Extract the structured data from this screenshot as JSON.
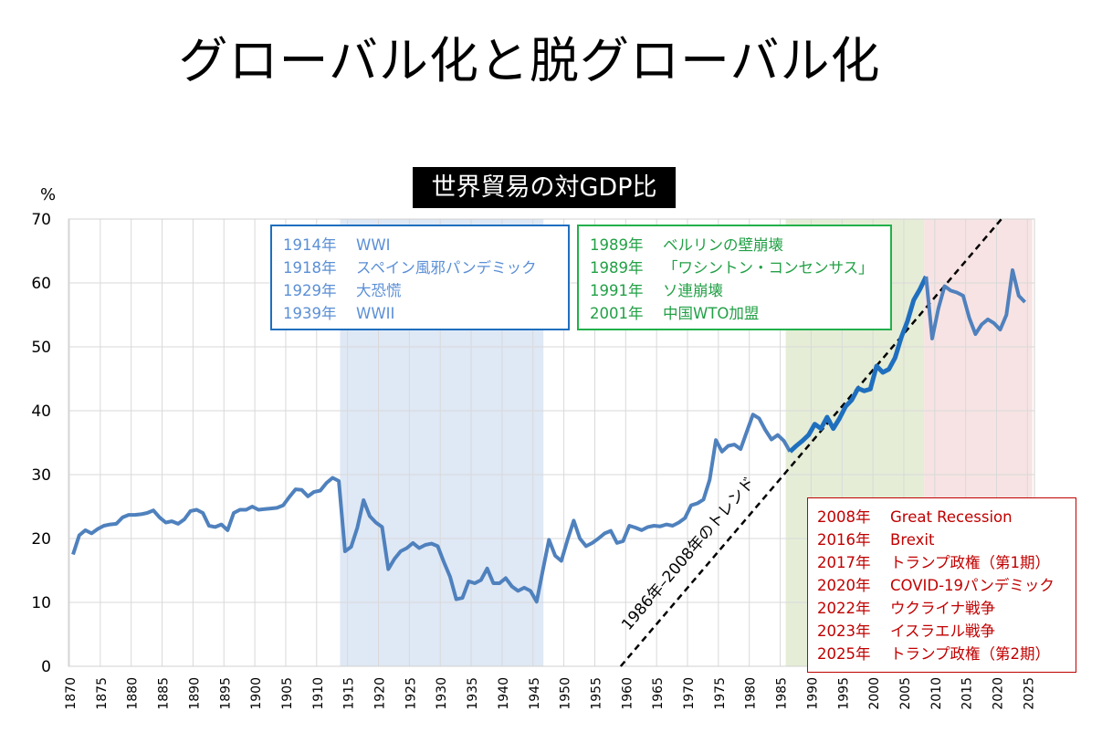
{
  "main_title": "グローバル化と脱グローバル化",
  "chart_data": {
    "type": "line",
    "title": "世界貿易の対GDP比",
    "ylabel": "%",
    "ylim": [
      0,
      70
    ],
    "yticks": [
      0,
      10,
      20,
      30,
      40,
      50,
      60,
      70
    ],
    "xlim": [
      1870,
      2025
    ],
    "xticks": [
      1870,
      1875,
      1880,
      1885,
      1890,
      1895,
      1900,
      1905,
      1910,
      1915,
      1920,
      1925,
      1930,
      1935,
      1940,
      1945,
      1950,
      1955,
      1960,
      1965,
      1970,
      1975,
      1980,
      1985,
      1990,
      1995,
      2000,
      2005,
      2010,
      2015,
      2020,
      2025
    ],
    "grid": true,
    "colors": {
      "series": "#4f81bd",
      "series_highlight": "#1f6fbf",
      "blue_band": "#dce6f4",
      "green_band": "#e2ebd2",
      "red_band": "#f6e0e0",
      "trend": "#000000"
    },
    "series": [
      {
        "x": [
          1870,
          1871,
          1872,
          1873,
          1874,
          1875,
          1876,
          1877,
          1878,
          1879,
          1880,
          1881,
          1882,
          1883,
          1884,
          1885,
          1886,
          1887,
          1888,
          1889,
          1890,
          1891,
          1892,
          1893,
          1894,
          1895,
          1896,
          1897,
          1898,
          1899,
          1900,
          1901,
          1902,
          1903,
          1904,
          1905,
          1906,
          1907,
          1908,
          1909,
          1910,
          1911,
          1912,
          1913,
          1914,
          1915,
          1916,
          1917,
          1918,
          1919,
          1920,
          1921,
          1922,
          1923,
          1924,
          1925,
          1926,
          1927,
          1928,
          1929,
          1930,
          1931,
          1932,
          1933,
          1934,
          1935,
          1936,
          1937,
          1938,
          1939,
          1940,
          1941,
          1942,
          1943,
          1944,
          1945,
          1946,
          1947,
          1948,
          1949,
          1950,
          1951,
          1952,
          1953,
          1954,
          1955,
          1956,
          1957,
          1958,
          1959,
          1960,
          1961,
          1962,
          1963,
          1964,
          1965,
          1966,
          1967,
          1968,
          1969,
          1970,
          1971,
          1972,
          1973,
          1974,
          1975,
          1976,
          1977,
          1978,
          1979,
          1980,
          1981,
          1982,
          1983,
          1984,
          1985,
          1986,
          1987,
          1988,
          1989,
          1990,
          1991,
          1992,
          1993,
          1994,
          1995,
          1996,
          1997,
          1998,
          1999,
          2000,
          2001,
          2002,
          2003,
          2004,
          2005,
          2006,
          2007,
          2008,
          2009,
          2010,
          2011,
          2012,
          2013,
          2014,
          2015,
          2016,
          2017,
          2018,
          2019,
          2020,
          2021,
          2022,
          2023,
          2024
        ],
        "y": [
          17.5,
          20.5,
          21.3,
          20.8,
          21.5,
          22,
          22.2,
          22.3,
          23.3,
          23.7,
          23.7,
          23.8,
          24,
          24.4,
          23.3,
          22.5,
          22.7,
          22.3,
          23,
          24.3,
          24.5,
          24,
          22,
          21.8,
          22.2,
          21.3,
          24,
          24.5,
          24.5,
          25,
          24.5,
          24.6,
          24.7,
          24.8,
          25.2,
          26.5,
          27.7,
          27.6,
          26.6,
          27.3,
          27.5,
          28.7,
          29.5,
          29,
          18,
          18.7,
          21.7,
          26,
          23.5,
          22.5,
          21.8,
          15.2,
          16.8,
          18,
          18.5,
          19.3,
          18.5,
          19,
          19.2,
          18.8,
          16.3,
          14,
          10.5,
          10.7,
          13.3,
          13,
          13.5,
          15.3,
          13,
          13,
          13.8,
          12.5,
          11.8,
          12.3,
          11.8,
          10.1,
          15,
          19.8,
          17.3,
          16.5,
          19.8,
          22.8,
          20,
          18.8,
          19.3,
          20,
          20.8,
          21.2,
          19.3,
          19.6,
          22,
          21.7,
          21.3,
          21.8,
          22,
          21.9,
          22.2,
          22,
          22.5,
          23.2,
          25.2,
          25.5,
          26.1,
          29.2,
          35.4,
          33.6,
          34.5,
          34.7,
          34,
          36.7,
          39.4,
          38.8,
          37,
          35.5,
          36.2,
          35.3,
          33.6,
          34.5,
          35.3,
          36.2,
          37.9,
          37.2,
          39,
          37.2,
          38.8,
          40.7,
          41.7,
          43.5,
          43.1,
          43.4,
          47,
          46,
          46.5,
          48.3,
          51.5,
          54,
          57.3,
          59,
          61,
          51.3,
          56,
          59.5,
          58.8,
          58.5,
          58,
          54.5,
          52,
          53.5,
          54.3,
          53.7,
          52.7,
          55,
          62,
          58,
          57
        ]
      }
    ],
    "trend": {
      "label": "1986年–2008年のトレンド",
      "x": [
        1958.6,
        2020.2
      ],
      "y": [
        0,
        70
      ]
    },
    "bands": [
      {
        "name": "war-era",
        "from": 1913.2,
        "to": 1946.1
      },
      {
        "name": "globalization",
        "from": 1985.3,
        "to": 2007.7
      },
      {
        "name": "deglobalization",
        "from": 2007.7,
        "to": 2025.2
      }
    ]
  },
  "annotations": {
    "blue": [
      {
        "year": "1914年",
        "event": "WWI"
      },
      {
        "year": "1918年",
        "event": "スペイン風邪パンデミック"
      },
      {
        "year": "1929年",
        "event": "大恐慌"
      },
      {
        "year": "1939年",
        "event": "WWII"
      }
    ],
    "green": [
      {
        "year": "1989年",
        "event": "ベルリンの壁崩壊"
      },
      {
        "year": "1989年",
        "event": "「ワシントン・コンセンサス」"
      },
      {
        "year": "1991年",
        "event": "ソ連崩壊"
      },
      {
        "year": "2001年",
        "event": "中国WTO加盟"
      }
    ],
    "red": [
      {
        "year": "2008年",
        "event": "Great Recession"
      },
      {
        "year": "2016年",
        "event": "Brexit"
      },
      {
        "year": "2017年",
        "event": "トランプ政権（第1期）"
      },
      {
        "year": "2020年",
        "event": "COVID-19パンデミック"
      },
      {
        "year": "2022年",
        "event": "ウクライナ戦争"
      },
      {
        "year": "2023年",
        "event": "イスラエル戦争"
      },
      {
        "year": "2025年",
        "event": "トランプ政権（第2期）"
      }
    ]
  }
}
